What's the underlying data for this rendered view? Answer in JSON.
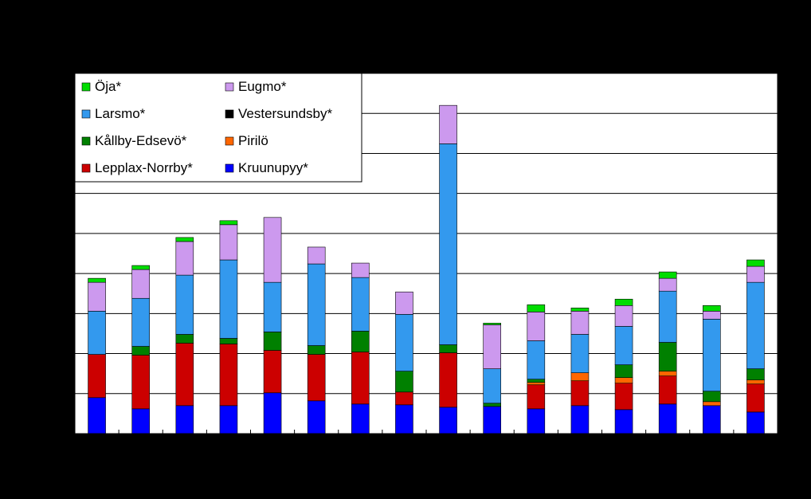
{
  "chart_data": {
    "type": "bar",
    "stacked": true,
    "title": "",
    "xlabel": "",
    "ylabel": "",
    "ylim": [
      0,
      450
    ],
    "grid": true,
    "legend_position": "top-left",
    "background": "#000000",
    "plot_background": "#ffffff",
    "categories": [
      "",
      "",
      "",
      "",
      "",
      "",
      "",
      "",
      "",
      "",
      "",
      "",
      "",
      "",
      "",
      ""
    ],
    "series": [
      {
        "name": "Kruunupyy*",
        "color": "#0000ff",
        "values": [
          45,
          31,
          35,
          35,
          51,
          41,
          37,
          36,
          33,
          34,
          31,
          35,
          30,
          37,
          35,
          27
        ]
      },
      {
        "name": "Lepplax-Norrby*",
        "color": "#cc0000",
        "values": [
          54,
          67,
          78,
          77,
          53,
          58,
          65,
          16,
          68,
          0,
          30,
          31,
          33,
          35,
          0,
          35
        ]
      },
      {
        "name": "Pirilö",
        "color": "#ff6600",
        "values": [
          0,
          0,
          0,
          0,
          0,
          0,
          0,
          0,
          0,
          0,
          3,
          10,
          7,
          6,
          5,
          5
        ]
      },
      {
        "name": "Vestersundsby*",
        "color": "#000000",
        "values": [
          0,
          0,
          0,
          0,
          0,
          0,
          0,
          0,
          0,
          0,
          0,
          0,
          0,
          0,
          0,
          0
        ]
      },
      {
        "name": "Kållby-Edsevö*",
        "color": "#008000",
        "values": [
          0,
          11,
          11,
          7,
          23,
          11,
          26,
          26,
          10,
          4,
          4,
          0,
          16,
          36,
          13,
          14
        ]
      },
      {
        "name": "Larsmo*",
        "color": "#3399ee",
        "values": [
          54,
          60,
          74,
          98,
          62,
          102,
          67,
          71,
          251,
          43,
          48,
          48,
          48,
          64,
          90,
          108
        ]
      },
      {
        "name": "Eugmo*",
        "color": "#cc99ee",
        "values": [
          36,
          36,
          42,
          44,
          81,
          21,
          18,
          28,
          48,
          55,
          36,
          29,
          26,
          16,
          10,
          20
        ]
      },
      {
        "name": "Öja*",
        "color": "#00dd00",
        "values": [
          5,
          5,
          5,
          5,
          0,
          0,
          0,
          0,
          0,
          2,
          9,
          4,
          8,
          8,
          7,
          8
        ]
      }
    ],
    "legend_items": [
      {
        "name": "Öja*",
        "color": "#00dd00"
      },
      {
        "name": "Eugmo*",
        "color": "#cc99ee"
      },
      {
        "name": "Larsmo*",
        "color": "#3399ee"
      },
      {
        "name": "Vestersundsby*",
        "color": "#000000"
      },
      {
        "name": "Kållby-Edsevö*",
        "color": "#008000"
      },
      {
        "name": "Pirilö",
        "color": "#ff6600"
      },
      {
        "name": "Lepplax-Norrby*",
        "color": "#cc0000"
      },
      {
        "name": "Kruunupyy*",
        "color": "#0000ff"
      }
    ]
  }
}
